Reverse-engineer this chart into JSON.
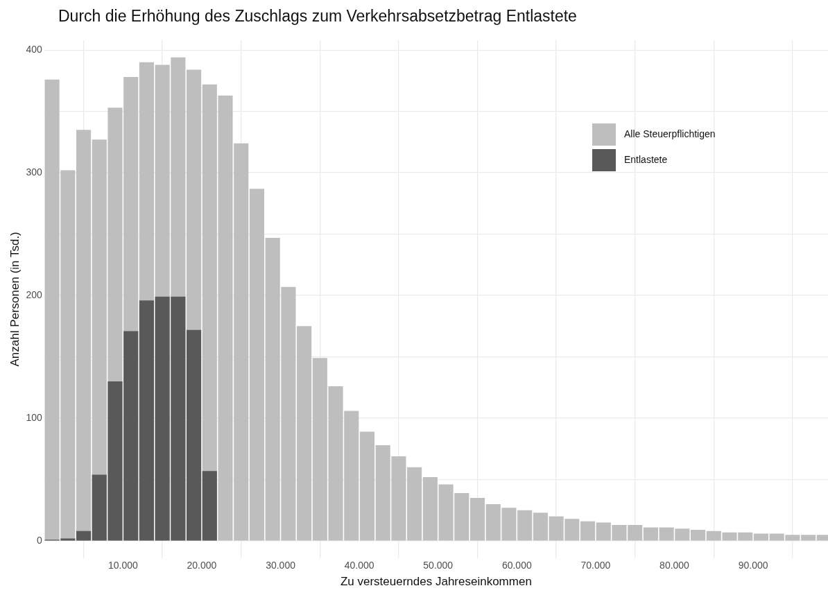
{
  "chart_data": {
    "type": "histogram",
    "title": "Durch die Erhöhung des Zuschlags zum Verkehrsabsetzbetrag Entlastete",
    "xlabel": "Zu versteuerndes Jahreseinkommen",
    "ylabel": "Anzahl Personen (in Tsd.)",
    "bins": [
      0,
      2000,
      4000,
      6000,
      8000,
      10000,
      12000,
      14000,
      16000,
      18000,
      20000,
      22000,
      24000,
      26000,
      28000,
      30000,
      32000,
      34000,
      36000,
      38000,
      40000,
      42000,
      44000,
      46000,
      48000,
      50000,
      52000,
      54000,
      56000,
      58000,
      60000,
      62000,
      64000,
      66000,
      68000,
      70000,
      72000,
      74000,
      76000,
      78000,
      80000,
      82000,
      84000,
      86000,
      88000,
      90000,
      92000,
      94000,
      96000,
      98000,
      100000
    ],
    "series": [
      {
        "name": "Alle Steuerpflichtigen",
        "color": "#bebebe",
        "values": [
          376,
          302,
          335,
          327,
          353,
          378,
          390,
          388,
          394,
          384,
          372,
          363,
          324,
          287,
          247,
          207,
          175,
          149,
          126,
          106,
          89,
          78,
          69,
          60,
          52,
          46,
          39,
          35,
          30,
          27,
          25,
          23,
          20,
          18,
          16,
          15,
          13,
          13,
          11,
          11,
          10,
          9,
          8,
          7,
          7,
          6,
          6,
          5,
          5,
          5
        ]
      },
      {
        "name": "Entlastete",
        "color": "#595959",
        "values": [
          1,
          2,
          8,
          54,
          130,
          171,
          196,
          199,
          199,
          172,
          57,
          0,
          0,
          0,
          0,
          0,
          0,
          0,
          0,
          0,
          0,
          0,
          0,
          0,
          0,
          0,
          0,
          0,
          0,
          0,
          0,
          0,
          0,
          0,
          0,
          0,
          0,
          0,
          0,
          0,
          0,
          0,
          0,
          0,
          0,
          0,
          0,
          0,
          0,
          0
        ]
      }
    ],
    "xlim": [
      0,
      99500
    ],
    "xticks": [
      {
        "value": 10000,
        "label": "10.000"
      },
      {
        "value": 20000,
        "label": "20.000"
      },
      {
        "value": 30000,
        "label": "30.000"
      },
      {
        "value": 40000,
        "label": "40.000"
      },
      {
        "value": 50000,
        "label": "50.000"
      },
      {
        "value": 60000,
        "label": "60.000"
      },
      {
        "value": 70000,
        "label": "70.000"
      },
      {
        "value": 80000,
        "label": "80.000"
      },
      {
        "value": 90000,
        "label": "90.000"
      }
    ],
    "ylim": [
      -14,
      408
    ],
    "yticks": [
      0,
      {
        "value": 50,
        "label": null
      },
      100,
      {
        "value": 150,
        "label": null
      },
      200,
      {
        "value": 250,
        "label": null
      },
      300,
      {
        "value": 350,
        "label": null
      },
      400
    ],
    "grid": true,
    "legend": "top right"
  }
}
